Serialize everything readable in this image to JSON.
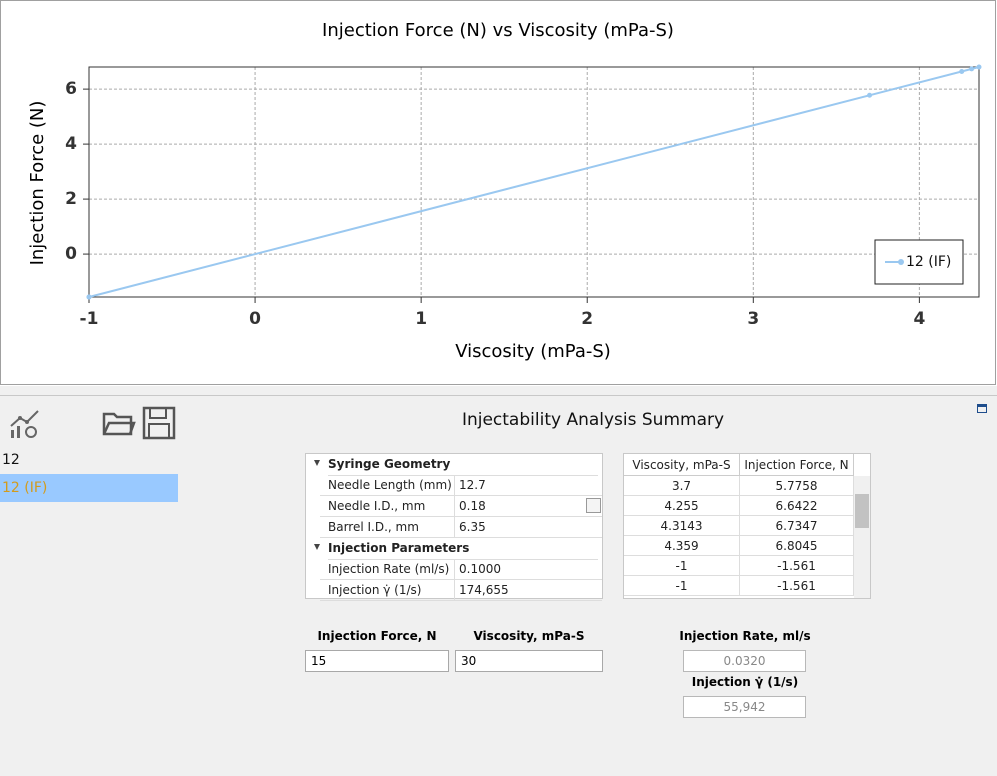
{
  "chart_data": {
    "type": "line",
    "title": "Injection Force (N) vs Viscosity (mPa-S)",
    "x_label": "Viscosity (mPa-S)",
    "y_label": "Injection Force (N)",
    "xlim": [
      -1,
      4.359
    ],
    "ylim": [
      -1.561,
      6.8045
    ],
    "xticks": [
      -1,
      0,
      1,
      2,
      3,
      4
    ],
    "yticks": [
      0,
      2,
      4,
      6
    ],
    "grid": true,
    "legend": "bottom-right",
    "series": [
      {
        "name": "12 (IF)",
        "color": "#9ac8f0",
        "x": [
          3.7,
          4.255,
          4.3143,
          4.359,
          -1,
          -1
        ],
        "values": [
          5.7758,
          6.6422,
          6.7347,
          6.8045,
          -1.561,
          -1.561
        ]
      }
    ]
  },
  "sidebar": {
    "items": [
      "12",
      "12 (IF)"
    ],
    "selected": 1
  },
  "summary": {
    "title": "Injectability Analysis Summary",
    "property_grid": {
      "groups": [
        {
          "name": "Syringe Geometry",
          "rows": [
            [
              "Needle Length (mm)",
              "12.7"
            ],
            [
              "Needle I.D., mm",
              "0.18"
            ],
            [
              "Barrel I.D., mm",
              "6.35"
            ]
          ]
        },
        {
          "name": "Injection Parameters",
          "rows": [
            [
              "Injection Rate (ml/s)",
              "0.1000"
            ],
            [
              "Injection γ̇ (1/s)",
              "174,655"
            ]
          ]
        }
      ]
    },
    "table": {
      "columns": [
        "Viscosity, mPa-S",
        "Injection Force, N"
      ],
      "rows": [
        [
          "3.7",
          "5.7758"
        ],
        [
          "4.255",
          "6.6422"
        ],
        [
          "4.3143",
          "6.7347"
        ],
        [
          "4.359",
          "6.8045"
        ],
        [
          "-1",
          "-1.561"
        ],
        [
          "-1",
          "-1.561"
        ]
      ]
    },
    "inputs": [
      {
        "label": "Injection Force, N",
        "value": "15"
      },
      {
        "label": "Viscosity, mPa-S",
        "value": "30"
      }
    ],
    "outputs": [
      {
        "label": "Injection Rate, ml/s",
        "value": "0.0320"
      },
      {
        "label": "Injection γ̇ (1/s)",
        "value": "55,942"
      }
    ]
  }
}
